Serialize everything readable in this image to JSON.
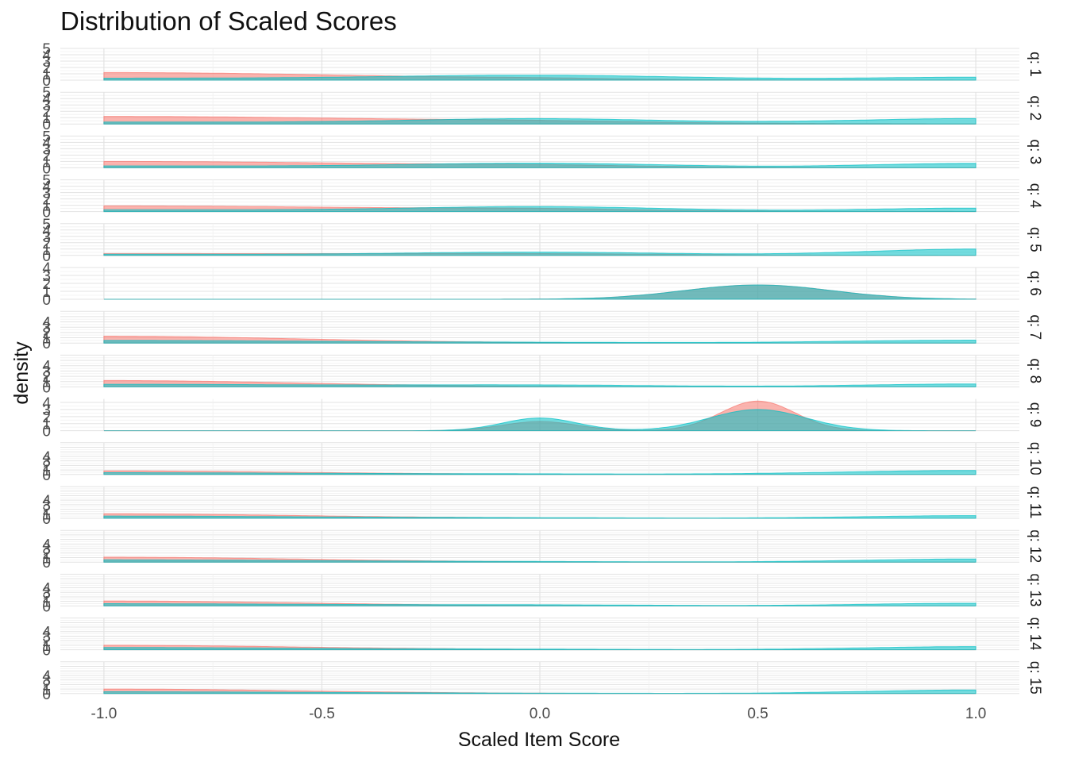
{
  "chart_data": {
    "type": "area",
    "subtype": "faceted density (ridgeline-style facets)",
    "title": "Distribution of Scaled Scores",
    "xlabel": "Scaled Item Score",
    "ylabel": "density",
    "xlim": [
      -1.1,
      1.1
    ],
    "x_ticks": [
      -1.0,
      -0.5,
      0.0,
      0.5,
      1.0
    ],
    "x_tick_labels": [
      "-1.0",
      "-0.5",
      "0.0",
      "0.5",
      "1.0"
    ],
    "grid": true,
    "legend": "none",
    "colors": {
      "group_a": "#F8766D",
      "group_b": "#00BFC4",
      "overlap": "#7C9E9F"
    },
    "facets": [
      {
        "label": "q: 1",
        "ylim": [
          0,
          5
        ],
        "y_ticks": [
          "0",
          "1",
          "2",
          "3",
          "4",
          "5"
        ],
        "series": [
          {
            "color": "#F8766D",
            "peaks": [
              [
                -1.0,
                0.6,
                1.2
              ],
              [
                0.0,
                0.15,
                0.1
              ]
            ]
          },
          {
            "color": "#00BFC4",
            "peaks": [
              [
                0.0,
                0.35,
                0.75
              ],
              [
                1.0,
                0.25,
                0.45
              ],
              [
                -1.0,
                0.5,
                0.3
              ]
            ]
          }
        ]
      },
      {
        "label": "q: 2",
        "ylim": [
          0,
          5
        ],
        "y_ticks": [
          "0",
          "1",
          "2",
          "3",
          "4",
          "5"
        ],
        "series": [
          {
            "color": "#F8766D",
            "peaks": [
              [
                -1.0,
                0.7,
                1.2
              ],
              [
                0.0,
                0.2,
                0.15
              ]
            ]
          },
          {
            "color": "#00BFC4",
            "peaks": [
              [
                0.0,
                0.3,
                0.8
              ],
              [
                1.0,
                0.3,
                0.85
              ],
              [
                -1.0,
                0.5,
                0.3
              ]
            ]
          }
        ]
      },
      {
        "label": "q: 3",
        "ylim": [
          0,
          5
        ],
        "y_ticks": [
          "0",
          "1",
          "2",
          "3",
          "4",
          "5"
        ],
        "series": [
          {
            "color": "#F8766D",
            "peaks": [
              [
                -1.0,
                0.7,
                1.0
              ],
              [
                0.0,
                0.2,
                0.15
              ]
            ]
          },
          {
            "color": "#00BFC4",
            "peaks": [
              [
                0.0,
                0.3,
                0.7
              ],
              [
                1.0,
                0.25,
                0.7
              ],
              [
                -1.0,
                0.5,
                0.3
              ]
            ]
          }
        ]
      },
      {
        "label": "q: 4",
        "ylim": [
          0,
          5
        ],
        "y_ticks": [
          "0",
          "1",
          "2",
          "3",
          "4",
          "5"
        ],
        "series": [
          {
            "color": "#F8766D",
            "peaks": [
              [
                -1.0,
                0.7,
                0.9
              ],
              [
                0.0,
                0.2,
                0.2
              ]
            ]
          },
          {
            "color": "#00BFC4",
            "peaks": [
              [
                0.0,
                0.3,
                0.75
              ],
              [
                1.0,
                0.25,
                0.55
              ],
              [
                -1.0,
                0.5,
                0.3
              ]
            ]
          }
        ]
      },
      {
        "label": "q: 5",
        "ylim": [
          0,
          5
        ],
        "y_ticks": [
          "0",
          "1",
          "2",
          "3",
          "4",
          "5"
        ],
        "series": [
          {
            "color": "#F8766D",
            "peaks": [
              [
                -1.0,
                0.8,
                0.3
              ],
              [
                0.0,
                0.3,
                0.15
              ]
            ]
          },
          {
            "color": "#00BFC4",
            "peaks": [
              [
                0.0,
                0.3,
                0.5
              ],
              [
                1.0,
                0.25,
                1.0
              ],
              [
                -1.0,
                0.5,
                0.2
              ]
            ]
          }
        ]
      },
      {
        "label": "q: 6",
        "ylim": [
          0,
          4
        ],
        "y_ticks": [
          "0",
          "1",
          "2",
          "3",
          "4"
        ],
        "series": [
          {
            "color": "#F8766D",
            "peaks": [
              [
                0.5,
                0.17,
                1.8
              ]
            ]
          },
          {
            "color": "#00BFC4",
            "peaks": [
              [
                0.5,
                0.17,
                1.8
              ]
            ]
          }
        ]
      },
      {
        "label": "q: 7",
        "ylim": [
          0,
          6
        ],
        "y_ticks": [
          "0",
          "1",
          "2",
          "3",
          "4"
        ],
        "series": [
          {
            "color": "#F8766D",
            "peaks": [
              [
                -1.0,
                0.45,
                1.3
              ]
            ]
          },
          {
            "color": "#00BFC4",
            "peaks": [
              [
                -1.0,
                0.5,
                0.5
              ],
              [
                1.0,
                0.3,
                0.55
              ],
              [
                0.0,
                0.3,
                0.1
              ]
            ]
          }
        ]
      },
      {
        "label": "q: 8",
        "ylim": [
          0,
          6
        ],
        "y_ticks": [
          "0",
          "1",
          "2",
          "3",
          "4"
        ],
        "series": [
          {
            "color": "#F8766D",
            "peaks": [
              [
                -1.0,
                0.45,
                1.2
              ]
            ]
          },
          {
            "color": "#00BFC4",
            "peaks": [
              [
                -1.0,
                0.5,
                0.5
              ],
              [
                0.0,
                0.3,
                0.3
              ],
              [
                1.0,
                0.25,
                0.55
              ]
            ]
          }
        ]
      },
      {
        "label": "q: 9",
        "ylim": [
          0,
          4.5
        ],
        "y_ticks": [
          "0",
          "1",
          "2",
          "3",
          "4"
        ],
        "series": [
          {
            "color": "#F8766D",
            "peaks": [
              [
                0.5,
                0.085,
                4.2
              ],
              [
                0.0,
                0.085,
                1.3
              ]
            ]
          },
          {
            "color": "#00BFC4",
            "peaks": [
              [
                0.5,
                0.11,
                3.0
              ],
              [
                0.0,
                0.085,
                1.8
              ]
            ]
          }
        ]
      },
      {
        "label": "q: 10",
        "ylim": [
          0,
          7
        ],
        "y_ticks": [
          "0",
          "1",
          "2",
          "3",
          "4"
        ],
        "series": [
          {
            "color": "#F8766D",
            "peaks": [
              [
                -1.0,
                0.45,
                0.8
              ]
            ]
          },
          {
            "color": "#00BFC4",
            "peaks": [
              [
                -1.0,
                0.5,
                0.4
              ],
              [
                1.0,
                0.3,
                0.9
              ],
              [
                0.0,
                0.3,
                0.1
              ]
            ]
          }
        ]
      },
      {
        "label": "q: 11",
        "ylim": [
          0,
          7
        ],
        "y_ticks": [
          "0",
          "1",
          "2",
          "3",
          "4"
        ],
        "series": [
          {
            "color": "#F8766D",
            "peaks": [
              [
                -1.0,
                0.45,
                1.0
              ]
            ]
          },
          {
            "color": "#00BFC4",
            "peaks": [
              [
                -1.0,
                0.5,
                0.5
              ],
              [
                1.0,
                0.25,
                0.6
              ],
              [
                0.0,
                0.3,
                0.08
              ]
            ]
          }
        ]
      },
      {
        "label": "q: 12",
        "ylim": [
          0,
          7
        ],
        "y_ticks": [
          "0",
          "1",
          "2",
          "3",
          "4"
        ],
        "series": [
          {
            "color": "#F8766D",
            "peaks": [
              [
                -1.0,
                0.45,
                1.1
              ]
            ]
          },
          {
            "color": "#00BFC4",
            "peaks": [
              [
                -1.0,
                0.5,
                0.5
              ],
              [
                1.0,
                0.25,
                0.7
              ],
              [
                0.0,
                0.3,
                0.08
              ]
            ]
          }
        ]
      },
      {
        "label": "q: 13",
        "ylim": [
          0,
          7
        ],
        "y_ticks": [
          "0",
          "1",
          "2",
          "3",
          "4"
        ],
        "series": [
          {
            "color": "#F8766D",
            "peaks": [
              [
                -1.0,
                0.45,
                1.1
              ]
            ]
          },
          {
            "color": "#00BFC4",
            "peaks": [
              [
                -1.0,
                0.5,
                0.5
              ],
              [
                1.0,
                0.25,
                0.6
              ],
              [
                0.0,
                0.3,
                0.2
              ]
            ]
          }
        ]
      },
      {
        "label": "q: 14",
        "ylim": [
          0,
          7
        ],
        "y_ticks": [
          "0",
          "1",
          "2",
          "3",
          "4"
        ],
        "series": [
          {
            "color": "#F8766D",
            "peaks": [
              [
                -1.0,
                0.45,
                1.0
              ]
            ]
          },
          {
            "color": "#00BFC4",
            "peaks": [
              [
                -1.0,
                0.5,
                0.5
              ],
              [
                1.0,
                0.25,
                0.7
              ],
              [
                0.0,
                0.3,
                0.08
              ]
            ]
          }
        ]
      },
      {
        "label": "q: 15",
        "ylim": [
          0,
          7
        ],
        "y_ticks": [
          "0",
          "1",
          "2",
          "3",
          "4"
        ],
        "series": [
          {
            "color": "#F8766D",
            "peaks": [
              [
                -1.0,
                0.45,
                1.0
              ]
            ]
          },
          {
            "color": "#00BFC4",
            "peaks": [
              [
                -1.0,
                0.5,
                0.4
              ],
              [
                1.0,
                0.25,
                0.8
              ],
              [
                0.0,
                0.3,
                0.05
              ]
            ]
          }
        ]
      }
    ]
  }
}
